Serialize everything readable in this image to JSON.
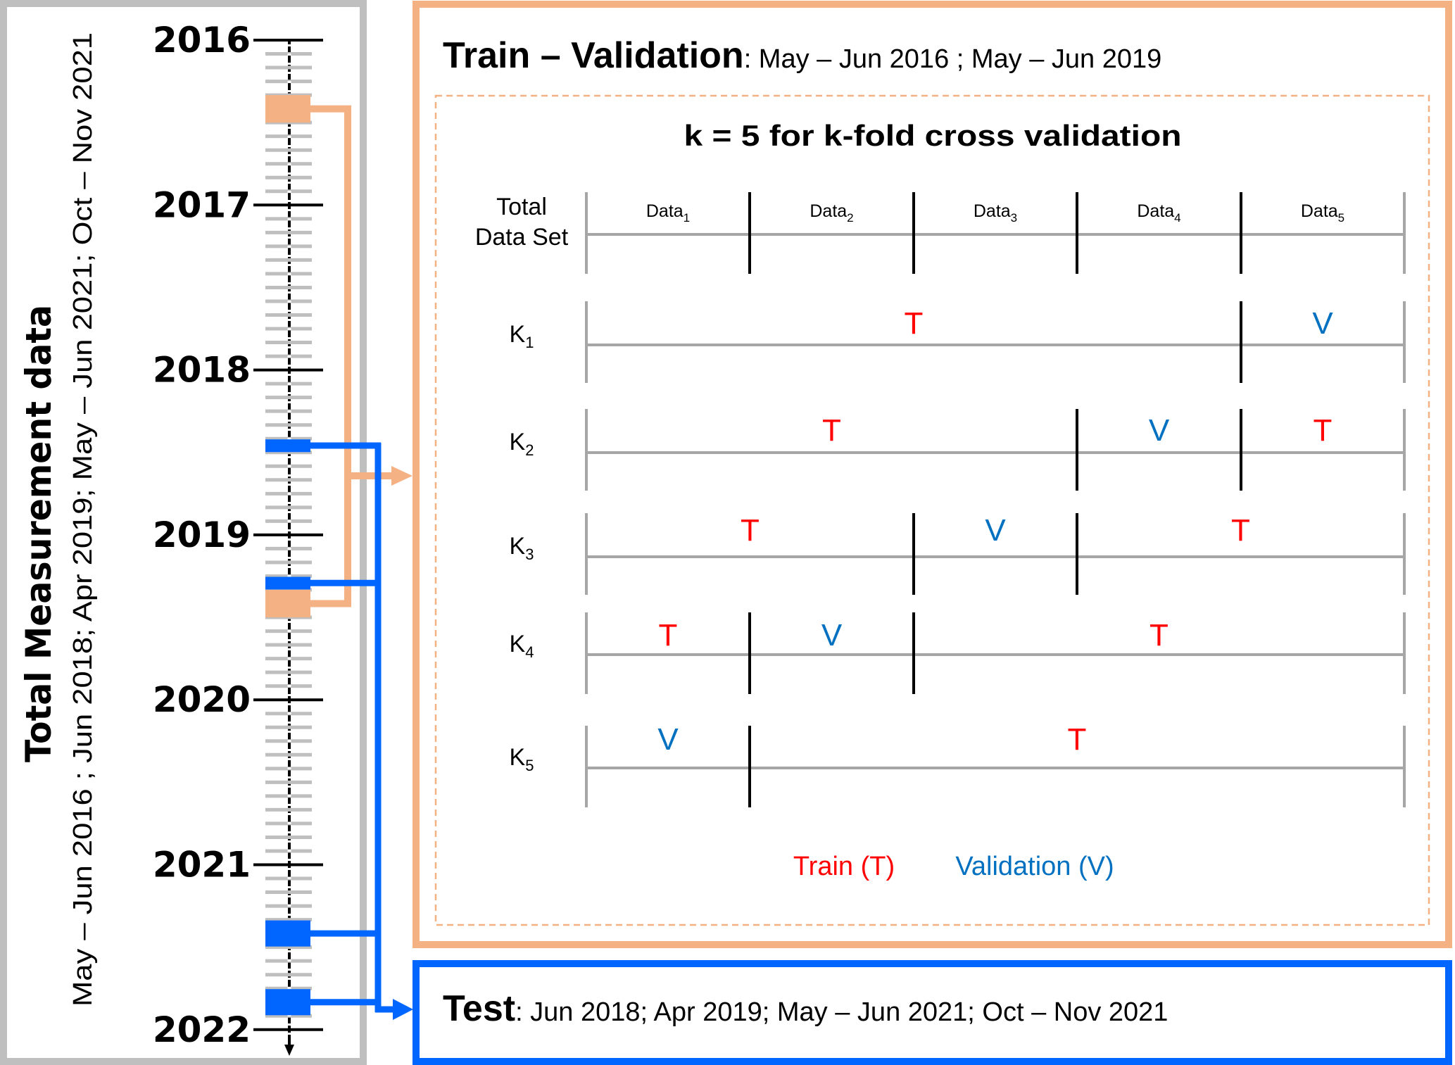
{
  "colors": {
    "train_validation": "#F4B183",
    "test": "#0066FF",
    "train_text": "#FF0000",
    "validation_text": "#0070C0",
    "panel_border": "#BFBFBF",
    "month_tick": "#BFBFBF",
    "fold_line": "#A6A6A6"
  },
  "timeline": {
    "title": "Total Measurement data",
    "subtitle": "May – Jun 2016 ; Jun 2018; Apr 2019; May – Jun 2021; Oct – Nov 2021",
    "years": [
      "2016",
      "2017",
      "2018",
      "2019",
      "2020",
      "2021",
      "2022"
    ],
    "train_validation_periods": [
      {
        "start": "2016-05",
        "end": "2016-06"
      },
      {
        "start": "2019-05",
        "end": "2019-06"
      }
    ],
    "test_periods": [
      {
        "start": "2018-06",
        "end": "2018-06"
      },
      {
        "start": "2019-04",
        "end": "2019-04"
      },
      {
        "start": "2021-05",
        "end": "2021-06"
      },
      {
        "start": "2021-10",
        "end": "2021-11"
      }
    ]
  },
  "train_validation": {
    "title_bold": "Train – Validation",
    "title_rest": ": May – Jun 2016 ; May – Jun 2019",
    "cv_title": "k = 5 for k-fold cross validation",
    "total_label_line1": "Total",
    "total_label_line2": "Data Set",
    "data_labels": [
      {
        "base": "Data",
        "sub": "1"
      },
      {
        "base": "Data",
        "sub": "2"
      },
      {
        "base": "Data",
        "sub": "3"
      },
      {
        "base": "Data",
        "sub": "4"
      },
      {
        "base": "Data",
        "sub": "5"
      }
    ],
    "folds": [
      {
        "label": "K",
        "sub": "1",
        "segments": [
          {
            "from": 1,
            "to": 4,
            "type": "T"
          },
          {
            "from": 5,
            "to": 5,
            "type": "V"
          }
        ]
      },
      {
        "label": "K",
        "sub": "2",
        "segments": [
          {
            "from": 1,
            "to": 3,
            "type": "T"
          },
          {
            "from": 4,
            "to": 4,
            "type": "V"
          },
          {
            "from": 5,
            "to": 5,
            "type": "T"
          }
        ]
      },
      {
        "label": "K",
        "sub": "3",
        "segments": [
          {
            "from": 1,
            "to": 2,
            "type": "T"
          },
          {
            "from": 3,
            "to": 3,
            "type": "V"
          },
          {
            "from": 4,
            "to": 5,
            "type": "T"
          }
        ]
      },
      {
        "label": "K",
        "sub": "4",
        "segments": [
          {
            "from": 1,
            "to": 1,
            "type": "T"
          },
          {
            "from": 2,
            "to": 2,
            "type": "V"
          },
          {
            "from": 3,
            "to": 5,
            "type": "T"
          }
        ]
      },
      {
        "label": "K",
        "sub": "5",
        "segments": [
          {
            "from": 1,
            "to": 1,
            "type": "V"
          },
          {
            "from": 2,
            "to": 5,
            "type": "T"
          }
        ]
      }
    ],
    "legend": {
      "train": "Train (T)",
      "validation": "Validation (V)"
    }
  },
  "test": {
    "title_bold": "Test",
    "title_rest": ": Jun 2018; Apr 2019; May – Jun 2021; Oct – Nov 2021"
  }
}
